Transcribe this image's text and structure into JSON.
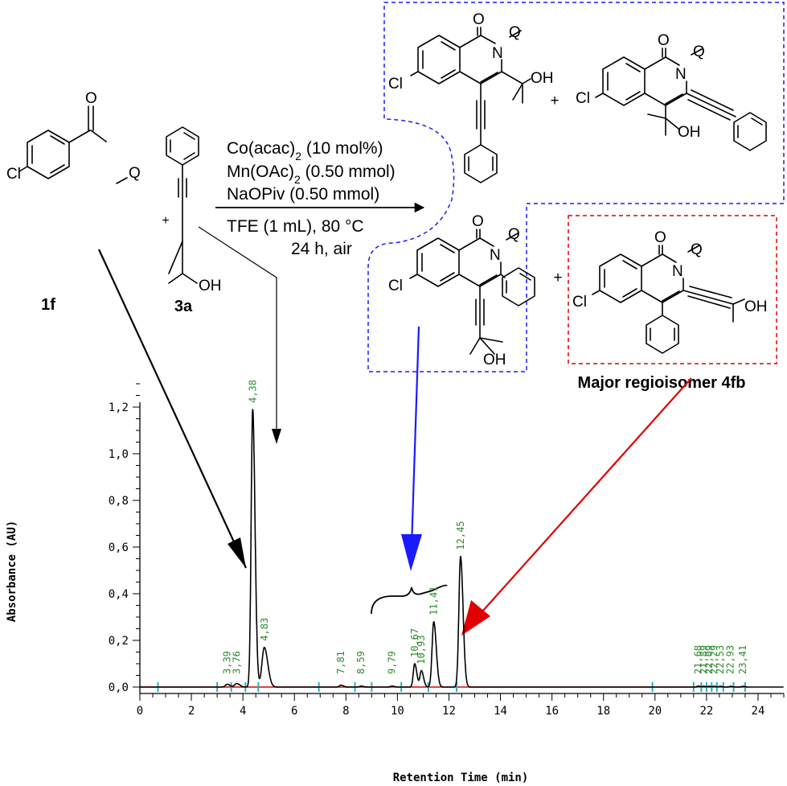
{
  "reaction": {
    "substrate_label": "1f",
    "alkyne_label": "3a",
    "plus": "+",
    "conditions": [
      {
        "main": "Co(acac)",
        "sub": "2",
        "rest": " (10 mol%)"
      },
      {
        "main": "Mn(OAc)",
        "sub": "2",
        "rest": " (0.50 mmol)"
      },
      {
        "main": "NaOPiv (0.50 mmol)",
        "sub": "",
        "rest": ""
      }
    ],
    "conditions_below": [
      "TFE (1 mL), 80 °C",
      "24 h, air"
    ],
    "major_label": "Major regioisomer 4fb",
    "atoms": {
      "cl": "Cl",
      "n": "N",
      "h": "H",
      "o": "O",
      "q": "Q",
      "oh": "OH"
    }
  },
  "colors": {
    "trace": "#000000",
    "baseline": "#e00000",
    "peak_labels": "#2e8b2e",
    "markers": "#21b5c0",
    "box_blue": "#1a1aff",
    "box_red": "#e00000",
    "arrow_blue": "#1a1aff",
    "arrow_red": "#e00000",
    "arrow_black": "#000000"
  },
  "chart_data": {
    "type": "line",
    "xlabel": "Retention Time (min)",
    "ylabel": "Absorbance (AU)",
    "xlim": [
      0,
      25
    ],
    "ylim": [
      -0.03,
      1.3
    ],
    "x_ticks": [
      "0",
      "2",
      "4",
      "6",
      "8",
      "10",
      "12",
      "14",
      "16",
      "18",
      "20",
      "22",
      "24"
    ],
    "y_ticks": [
      "0,0",
      "0,2",
      "0,4",
      "0,6",
      "0,8",
      "1,0",
      "1,2"
    ],
    "y_tick_values": [
      0,
      0.2,
      0.4,
      0.6,
      0.8,
      1.0,
      1.2
    ],
    "grid": false,
    "peaks": [
      {
        "rt": 3.39,
        "label": "3,39",
        "height": 0.012,
        "width": 0.07
      },
      {
        "rt": 3.76,
        "label": "3,76",
        "height": 0.015,
        "width": 0.08
      },
      {
        "rt": 4.38,
        "label": "4,38",
        "height": 1.19,
        "width": 0.06
      },
      {
        "rt": 4.83,
        "label": "4,83",
        "height": 0.17,
        "width": 0.09
      },
      {
        "rt": 7.81,
        "label": "7,81",
        "height": 0.008,
        "width": 0.06
      },
      {
        "rt": 8.59,
        "label": "8,59",
        "height": 0.004,
        "width": 0.06
      },
      {
        "rt": 9.79,
        "label": "9,79",
        "height": 0.004,
        "width": 0.06
      },
      {
        "rt": 10.67,
        "label": "10,67",
        "height": 0.1,
        "width": 0.055
      },
      {
        "rt": 10.93,
        "label": "10,93",
        "height": 0.07,
        "width": 0.055
      },
      {
        "rt": 11.41,
        "label": "11,41",
        "height": 0.28,
        "width": 0.065
      },
      {
        "rt": 12.45,
        "label": "12,45",
        "height": 0.56,
        "width": 0.065
      },
      {
        "rt": 21.68,
        "label": "21,68",
        "height": 0.004,
        "width": 0.05
      },
      {
        "rt": 21.89,
        "label": "21,89",
        "height": 0.003,
        "width": 0.05
      },
      {
        "rt": 22.09,
        "label": "22,09",
        "height": 0.003,
        "width": 0.05
      },
      {
        "rt": 22.29,
        "label": "22,29",
        "height": 0.003,
        "width": 0.05
      },
      {
        "rt": 22.53,
        "label": "22,53",
        "height": 0.003,
        "width": 0.05
      },
      {
        "rt": 22.93,
        "label": "22,93",
        "height": 0.003,
        "width": 0.05
      },
      {
        "rt": 23.41,
        "label": "23,41",
        "height": 0.003,
        "width": 0.05
      }
    ],
    "integration_markers": [
      0.7,
      3.0,
      3.55,
      4.1,
      4.6,
      6.95,
      8.35,
      9.0,
      10.15,
      11.2,
      12.3,
      19.9,
      21.5,
      21.8,
      22.0,
      22.2,
      22.4,
      22.65,
      23.05,
      23.5
    ]
  }
}
